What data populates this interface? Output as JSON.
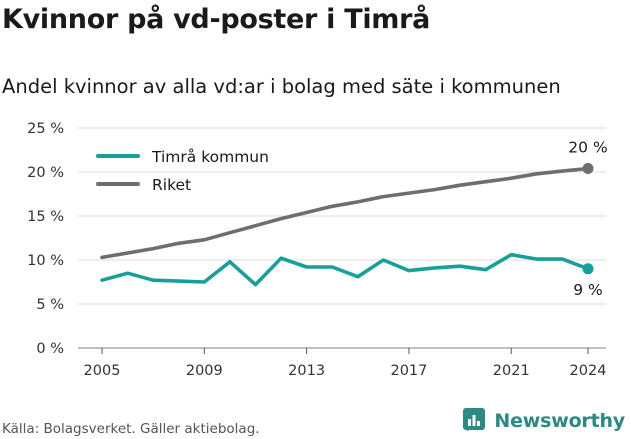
{
  "header": {
    "title": "Kvinnor på vd-poster i Timrå",
    "subtitle": "Andel kvinnor av alla vd:ar i bolag med säte i kommunen"
  },
  "footer": {
    "source": "Källa: Bolagsverket. Gäller aktiebolag.",
    "brand": "Newsworthy",
    "brand_icon": "newsworthy-logo-icon",
    "brand_color": "#2a8a84"
  },
  "chart_data": {
    "type": "line",
    "x": [
      2005,
      2006,
      2007,
      2008,
      2009,
      2010,
      2011,
      2012,
      2013,
      2014,
      2015,
      2016,
      2017,
      2018,
      2019,
      2020,
      2021,
      2022,
      2023,
      2024
    ],
    "series": [
      {
        "name": "Timrå kommun",
        "color": "#16a09a",
        "values": [
          7.7,
          8.5,
          7.7,
          7.6,
          7.5,
          9.8,
          7.2,
          10.2,
          9.2,
          9.2,
          8.1,
          10.0,
          8.8,
          9.1,
          9.3,
          8.9,
          10.6,
          10.1,
          10.1,
          9.0
        ],
        "end_label": "9 %"
      },
      {
        "name": "Riket",
        "color": "#6e6e72",
        "values": [
          10.3,
          10.8,
          11.3,
          11.9,
          12.3,
          13.1,
          13.9,
          14.7,
          15.4,
          16.1,
          16.6,
          17.2,
          17.6,
          18.0,
          18.5,
          18.9,
          19.3,
          19.8,
          20.1,
          20.4
        ],
        "end_label": "20 %"
      }
    ],
    "x_ticks": [
      "2005",
      "2009",
      "2013",
      "2017",
      "2021",
      "2024"
    ],
    "x_tick_values": [
      2005,
      2009,
      2013,
      2017,
      2021,
      2024
    ],
    "y_ticks": [
      "0 %",
      "5 %",
      "10 %",
      "15 %",
      "20 %",
      "25 %"
    ],
    "y_tick_values": [
      0,
      5,
      10,
      15,
      20,
      25
    ],
    "ylim": [
      0,
      25
    ],
    "xlim": [
      2005,
      2024
    ],
    "grid": "horizontal",
    "legend_position": "top-left"
  }
}
